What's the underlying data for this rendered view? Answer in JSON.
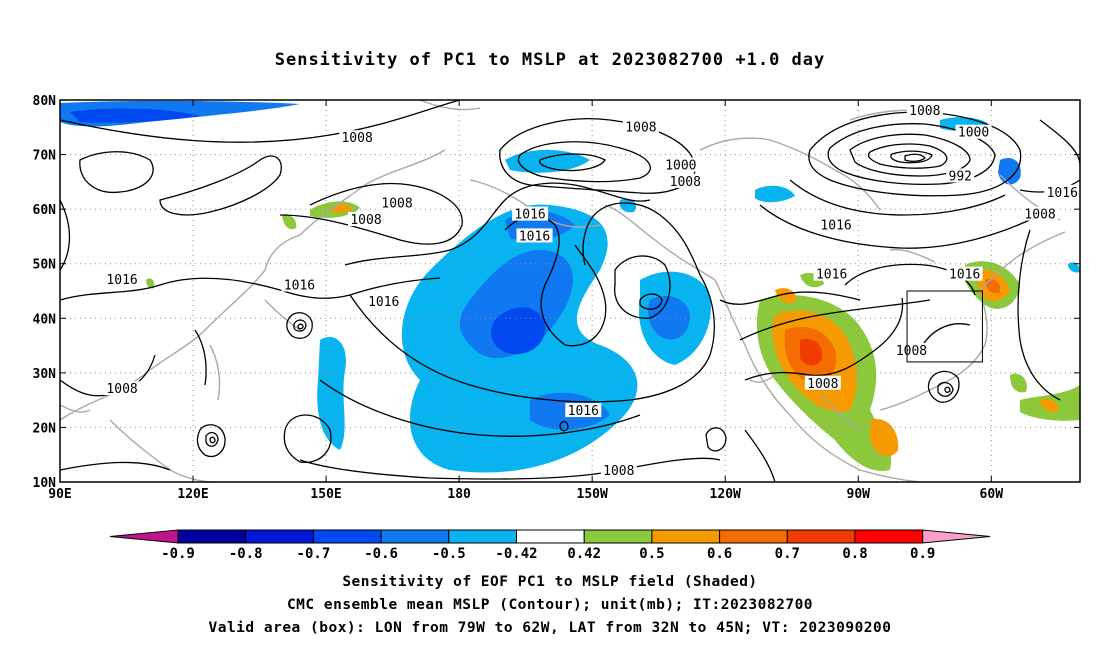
{
  "title": "Sensitivity of PC1 to MSLP at 2023082700 +1.0 day",
  "map": {
    "lon_labels": [
      "90E",
      "120E",
      "150E",
      "180",
      "150W",
      "120W",
      "90W",
      "60W"
    ],
    "lat_labels": [
      "10N",
      "20N",
      "30N",
      "40N",
      "50N",
      "60N",
      "70N",
      "80N"
    ],
    "lon_ticks_deg": [
      90,
      120,
      150,
      180,
      210,
      240,
      270,
      300
    ],
    "lat_ticks_deg": [
      10,
      20,
      30,
      40,
      50,
      60,
      70,
      80
    ],
    "lon_range": [
      90,
      320
    ],
    "lat_range": [
      10,
      80
    ],
    "valid_box": {
      "lon": [
        281,
        298
      ],
      "lat": [
        32,
        45
      ]
    },
    "contour_labels": [
      {
        "text": "1008",
        "lon": 157,
        "lat": 73
      },
      {
        "text": "1008",
        "lon": 221,
        "lat": 75
      },
      {
        "text": "1008",
        "lon": 285,
        "lat": 78
      },
      {
        "text": "1000",
        "lon": 296,
        "lat": 74
      },
      {
        "text": "1000",
        "lon": 230,
        "lat": 68
      },
      {
        "text": "1008",
        "lon": 231,
        "lat": 65
      },
      {
        "text": "992",
        "lon": 293,
        "lat": 66
      },
      {
        "text": "1016",
        "lon": 196,
        "lat": 59
      },
      {
        "text": "1016",
        "lon": 265,
        "lat": 57
      },
      {
        "text": "1008",
        "lon": 159,
        "lat": 58
      },
      {
        "text": "1008",
        "lon": 166,
        "lat": 61
      },
      {
        "text": "1008",
        "lon": 311,
        "lat": 59
      },
      {
        "text": "1016",
        "lon": 316,
        "lat": 63
      },
      {
        "text": "1016",
        "lon": 197,
        "lat": 55
      },
      {
        "text": "1016",
        "lon": 104,
        "lat": 47
      },
      {
        "text": "1016",
        "lon": 144,
        "lat": 46
      },
      {
        "text": "1016",
        "lon": 163,
        "lat": 43
      },
      {
        "text": "1016",
        "lon": 264,
        "lat": 48
      },
      {
        "text": "1016",
        "lon": 294,
        "lat": 48
      },
      {
        "text": "1008",
        "lon": 282,
        "lat": 34
      },
      {
        "text": "1008",
        "lon": 262,
        "lat": 28
      },
      {
        "text": "1008",
        "lon": 104,
        "lat": 27
      },
      {
        "text": "1016",
        "lon": 208,
        "lat": 23
      },
      {
        "text": "1008",
        "lon": 216,
        "lat": 12
      }
    ]
  },
  "legend": {
    "labels": [
      "-0.9",
      "-0.8",
      "-0.7",
      "-0.6",
      "-0.5",
      "-0.42",
      "0.42",
      "0.5",
      "0.6",
      "0.7",
      "0.8",
      "0.9"
    ],
    "colors": [
      "#c0148c",
      "#0000a0",
      "#0018d8",
      "#0048f0",
      "#1078f0",
      "#08b4f0",
      "#ffffff",
      "#8cc83c",
      "#f59a00",
      "#f56c00",
      "#f03c00",
      "#ff0000",
      "#f8a0c8"
    ]
  },
  "captions": [
    "Sensitivity of EOF PC1 to MSLP field (Shaded)",
    "CMC ensemble mean MSLP (Contour); unit(mb); IT:2023082700",
    "Valid area (box): LON from 79W to 62W, LAT from 32N to 45N; VT: 2023090200"
  ]
}
